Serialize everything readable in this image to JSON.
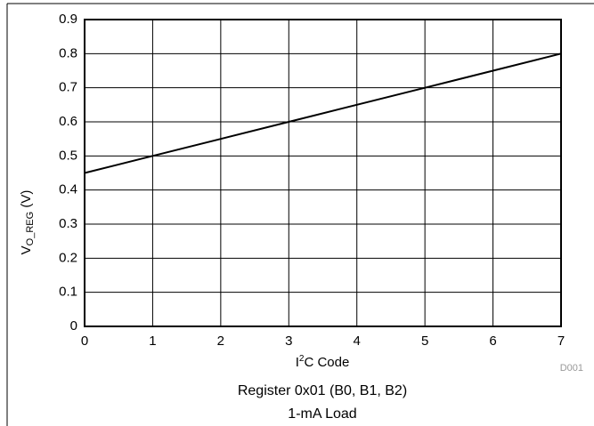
{
  "chart_data": {
    "type": "line",
    "x": [
      0,
      1,
      2,
      3,
      4,
      5,
      6,
      7
    ],
    "values": [
      0.45,
      0.5,
      0.55,
      0.6,
      0.65,
      0.7,
      0.75,
      0.8
    ],
    "color": "#000000",
    "xlim": [
      0,
      7
    ],
    "xticks": [
      0,
      1,
      2,
      3,
      4,
      5,
      6,
      7
    ],
    "ylim": [
      0,
      0.9
    ],
    "yticks": [
      0,
      0.1,
      0.2,
      0.3,
      0.4,
      0.5,
      0.6,
      0.7,
      0.8,
      0.9
    ],
    "grid": true,
    "ylabel": {
      "main": "V",
      "sub": "O_REG",
      "unit": " (V)"
    },
    "xlabel": {
      "pre": "I",
      "sup": "2",
      "post": "C Code"
    },
    "id_note": "D001",
    "caption": [
      "Register 0x01 (B0, B1, B2)",
      "1-mA Load"
    ]
  }
}
